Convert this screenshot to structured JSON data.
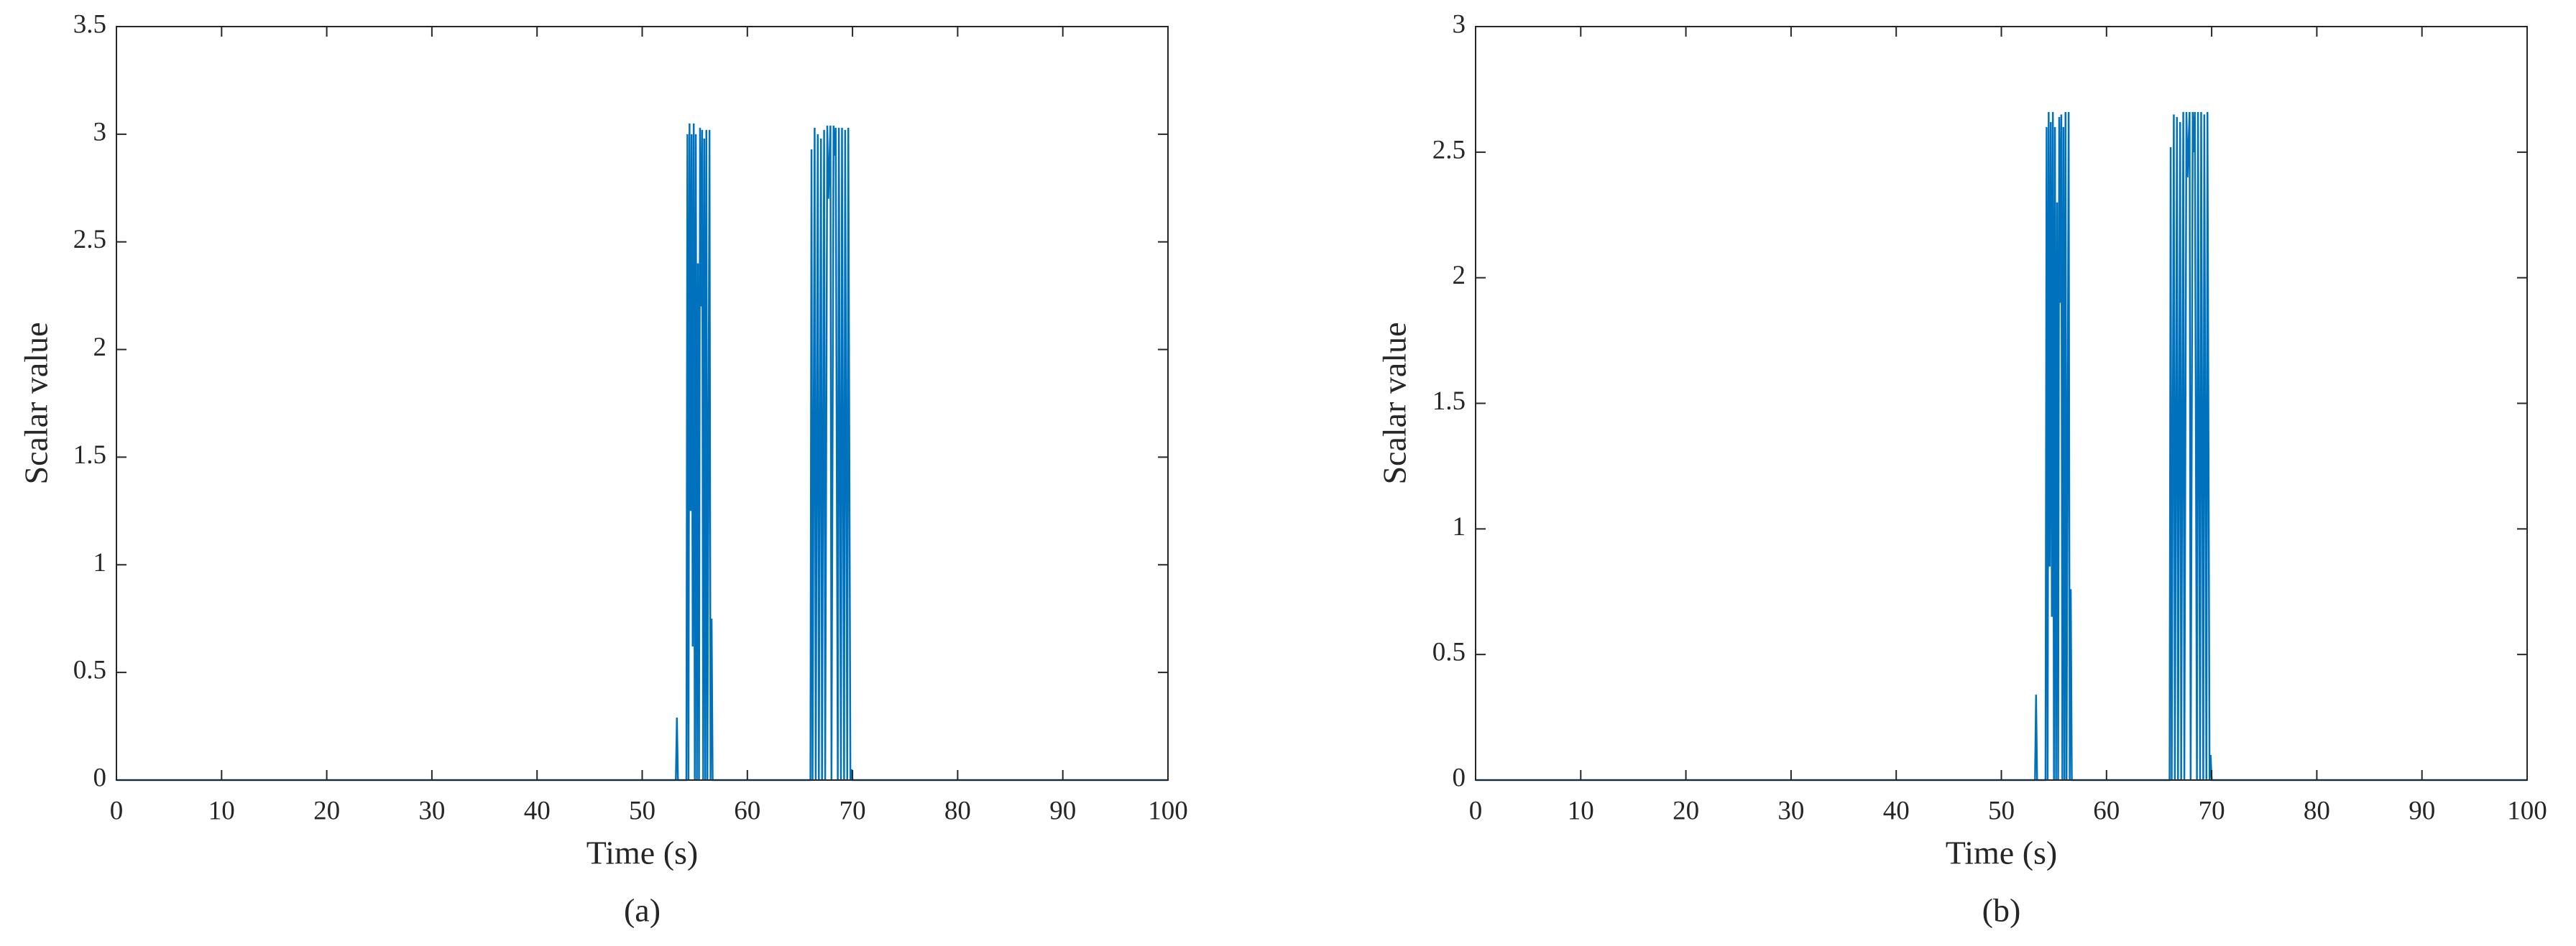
{
  "chart_data": [
    {
      "type": "line",
      "caption": "(a)",
      "x_label": "Time (s)",
      "y_label": "Scalar value",
      "xlim": [
        0,
        100
      ],
      "xticks": [
        0,
        10,
        20,
        30,
        40,
        50,
        60,
        70,
        80,
        90,
        100
      ],
      "ylim": [
        0,
        3.5
      ],
      "yticks": [
        0,
        0.5,
        1,
        1.5,
        2,
        2.5,
        3,
        3.5
      ],
      "x": [
        0,
        53.2,
        53.3,
        53.4,
        54.2,
        54.3,
        54.4,
        54.5,
        54.6,
        54.7,
        54.8,
        54.9,
        55.0,
        55.1,
        55.2,
        55.3,
        55.4,
        55.5,
        55.6,
        55.7,
        55.8,
        55.9,
        56.0,
        56.1,
        56.2,
        56.4,
        56.5,
        56.6,
        56.7,
        56.9,
        57.0,
        57.1,
        57.2,
        57.4,
        57.5,
        57.6,
        66.0,
        66.1,
        66.2,
        66.4,
        66.5,
        66.7,
        66.8,
        67.0,
        67.1,
        67.3,
        67.4,
        67.6,
        67.7,
        67.9,
        68.0,
        68.2,
        68.3,
        68.4,
        68.6,
        68.7,
        68.9,
        69.0,
        69.2,
        69.3,
        69.5,
        69.6,
        69.8,
        69.9,
        70.0,
        70.1,
        100
      ],
      "series": [
        {
          "color": "#0072bd",
          "values": [
            0,
            0,
            0.29,
            0,
            0,
            3.0,
            0,
            3.05,
            1.25,
            3.0,
            0.62,
            3.05,
            0,
            3.0,
            0,
            2.4,
            0,
            3.03,
            2.2,
            3.02,
            0,
            2.98,
            0,
            3.02,
            0,
            3.02,
            0,
            0.75,
            0,
            0,
            0,
            0,
            0,
            0,
            0,
            0,
            0,
            2.93,
            0,
            3.03,
            0,
            3.0,
            0,
            2.98,
            0,
            3.02,
            0,
            3.04,
            2.7,
            3.04,
            0,
            3.04,
            2.9,
            3.03,
            0,
            3.03,
            0,
            3.03,
            0,
            3.02,
            0,
            3.03,
            0,
            0.05,
            0,
            0,
            0
          ]
        }
      ]
    },
    {
      "type": "line",
      "caption": "(b)",
      "x_label": "Time (s)",
      "y_label": "Scalar value",
      "xlim": [
        0,
        100
      ],
      "xticks": [
        0,
        10,
        20,
        30,
        40,
        50,
        60,
        70,
        80,
        90,
        100
      ],
      "ylim": [
        0,
        3
      ],
      "yticks": [
        0,
        0.5,
        1,
        1.5,
        2,
        2.5,
        3
      ],
      "x": [
        0,
        53.2,
        53.3,
        53.4,
        54.2,
        54.3,
        54.4,
        54.5,
        54.6,
        54.7,
        54.8,
        54.9,
        55.0,
        55.1,
        55.2,
        55.3,
        55.4,
        55.5,
        55.6,
        55.7,
        55.8,
        55.9,
        56.0,
        56.1,
        56.2,
        56.4,
        56.5,
        56.6,
        56.7,
        56.9,
        57.0,
        57.1,
        57.2,
        57.4,
        57.5,
        57.6,
        66.0,
        66.1,
        66.2,
        66.4,
        66.5,
        66.7,
        66.8,
        67.0,
        67.1,
        67.3,
        67.4,
        67.6,
        67.7,
        67.9,
        68.0,
        68.2,
        68.3,
        68.4,
        68.6,
        68.7,
        68.9,
        69.0,
        69.2,
        69.3,
        69.5,
        69.6,
        69.8,
        69.9,
        70.0,
        70.1,
        100
      ],
      "series": [
        {
          "color": "#0072bd",
          "values": [
            0,
            0,
            0.34,
            0,
            0,
            2.6,
            0,
            2.66,
            0.85,
            2.62,
            0.65,
            2.66,
            0,
            2.6,
            0,
            2.3,
            0,
            2.64,
            1.9,
            2.65,
            0,
            2.6,
            0,
            2.66,
            0,
            2.66,
            0,
            0.76,
            0,
            0,
            0,
            0,
            0,
            0,
            0,
            0,
            0,
            2.52,
            0,
            2.65,
            0,
            2.64,
            0,
            2.62,
            0,
            2.66,
            0,
            2.66,
            2.4,
            2.66,
            0,
            2.66,
            2.5,
            2.66,
            0,
            2.66,
            0,
            2.66,
            0,
            2.65,
            0,
            2.66,
            0,
            0.1,
            0,
            0,
            0
          ]
        }
      ]
    }
  ]
}
